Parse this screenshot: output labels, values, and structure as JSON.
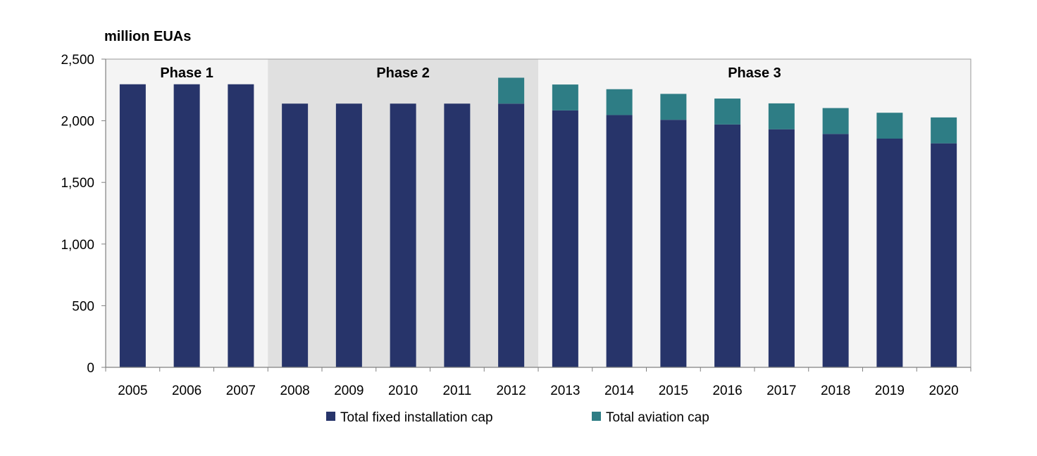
{
  "chart_data": {
    "type": "bar",
    "stacked": true,
    "unit_label": "million EUAs",
    "title": "",
    "xlabel": "",
    "ylabel": "",
    "ylim": [
      0,
      2500
    ],
    "yticks": [
      0,
      500,
      1000,
      1500,
      2000,
      2500
    ],
    "ytick_labels": [
      "0",
      "500",
      "1,000",
      "1,500",
      "2,000",
      "2,500"
    ],
    "grid": false,
    "legend_position": "bottom",
    "categories": [
      "2005",
      "2006",
      "2007",
      "2008",
      "2009",
      "2010",
      "2011",
      "2012",
      "2013",
      "2014",
      "2015",
      "2016",
      "2017",
      "2018",
      "2019",
      "2020"
    ],
    "series": [
      {
        "name": "Total fixed installation cap",
        "color": "#27346a",
        "values": [
          2296,
          2296,
          2296,
          2139,
          2139,
          2139,
          2139,
          2139,
          2084,
          2046,
          2008,
          1970,
          1931,
          1893,
          1855,
          1817
        ]
      },
      {
        "name": "Total aviation cap",
        "color": "#2e7d85",
        "values": [
          0,
          0,
          0,
          0,
          0,
          0,
          0,
          210,
          210,
          210,
          210,
          210,
          210,
          210,
          210,
          210
        ]
      }
    ],
    "phases": [
      {
        "label": "Phase 1",
        "start": "2005",
        "end": "2007",
        "background": "#f4f4f4"
      },
      {
        "label": "Phase 2",
        "start": "2008",
        "end": "2012",
        "background": "#e0e0e0"
      },
      {
        "label": "Phase 3",
        "start": "2013",
        "end": "2020",
        "background": "#f4f4f4"
      }
    ]
  }
}
